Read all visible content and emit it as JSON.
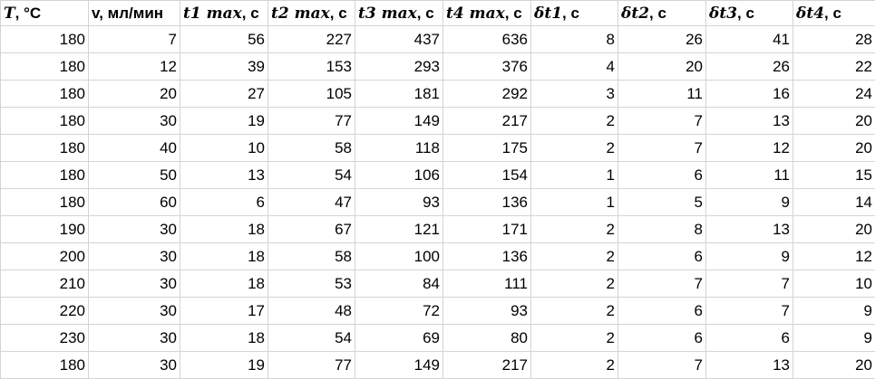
{
  "table": {
    "headers": [
      {
        "var": "T",
        "rest": ", °C"
      },
      {
        "var": "",
        "rest": "v, мл/мин"
      },
      {
        "var": "t1 max",
        "rest": ", с"
      },
      {
        "var": "t2 max",
        "rest": ", с"
      },
      {
        "var": "t3 max",
        "rest": ", с"
      },
      {
        "var": "t4 max",
        "rest": ", с"
      },
      {
        "var": "δt1",
        "rest": ", с"
      },
      {
        "var": "δt2",
        "rest": ", с"
      },
      {
        "var": "δt3",
        "rest": ", с"
      },
      {
        "var": "δt4",
        "rest": ", с"
      }
    ],
    "rows": [
      [
        "180",
        "7",
        "56",
        "227",
        "437",
        "636",
        "8",
        "26",
        "41",
        "28"
      ],
      [
        "180",
        "12",
        "39",
        "153",
        "293",
        "376",
        "4",
        "20",
        "26",
        "22"
      ],
      [
        "180",
        "20",
        "27",
        "105",
        "181",
        "292",
        "3",
        "11",
        "16",
        "24"
      ],
      [
        "180",
        "30",
        "19",
        "77",
        "149",
        "217",
        "2",
        "7",
        "13",
        "20"
      ],
      [
        "180",
        "40",
        "10",
        "58",
        "118",
        "175",
        "2",
        "7",
        "12",
        "20"
      ],
      [
        "180",
        "50",
        "13",
        "54",
        "106",
        "154",
        "1",
        "6",
        "11",
        "15"
      ],
      [
        "180",
        "60",
        "6",
        "47",
        "93",
        "136",
        "1",
        "5",
        "9",
        "14"
      ],
      [
        "190",
        "30",
        "18",
        "67",
        "121",
        "171",
        "2",
        "8",
        "13",
        "20"
      ],
      [
        "200",
        "30",
        "18",
        "58",
        "100",
        "136",
        "2",
        "6",
        "9",
        "12"
      ],
      [
        "210",
        "30",
        "18",
        "53",
        "84",
        "111",
        "2",
        "7",
        "7",
        "10"
      ],
      [
        "220",
        "30",
        "17",
        "48",
        "72",
        "93",
        "2",
        "6",
        "7",
        "9"
      ],
      [
        "230",
        "30",
        "18",
        "54",
        "69",
        "80",
        "2",
        "6",
        "6",
        "9"
      ],
      [
        "180",
        "30",
        "19",
        "77",
        "149",
        "217",
        "2",
        "7",
        "13",
        "20"
      ]
    ]
  }
}
